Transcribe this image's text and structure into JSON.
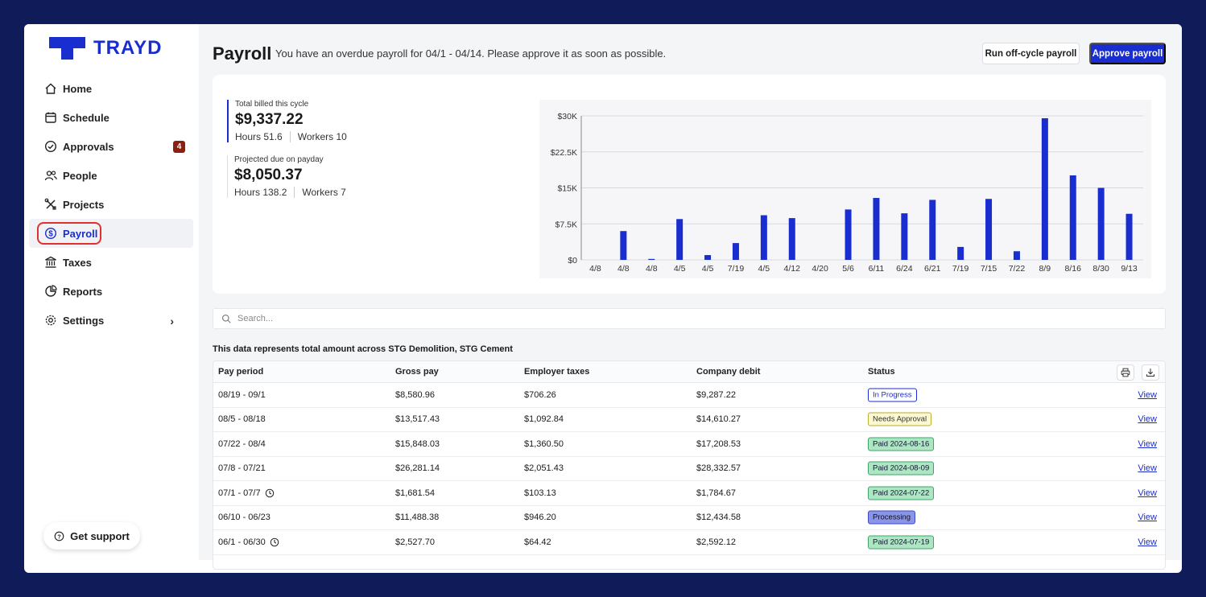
{
  "brand": {
    "name": "TRAYD",
    "color": "#1a2ecf"
  },
  "nav": {
    "items": [
      {
        "label": "Home",
        "icon": "home-icon"
      },
      {
        "label": "Schedule",
        "icon": "calendar-icon"
      },
      {
        "label": "Approvals",
        "icon": "check-circle-icon",
        "badge": "4"
      },
      {
        "label": "People",
        "icon": "people-icon"
      },
      {
        "label": "Projects",
        "icon": "tools-icon"
      },
      {
        "label": "Payroll",
        "icon": "dollar-circle-icon",
        "active": true
      },
      {
        "label": "Taxes",
        "icon": "bank-icon"
      },
      {
        "label": "Reports",
        "icon": "pie-chart-icon"
      },
      {
        "label": "Settings",
        "icon": "gear-icon"
      }
    ],
    "support_label": "Get support"
  },
  "header": {
    "title": "Payroll",
    "subtitle": "You have an overdue payroll for 04/1 - 04/14. Please approve it as soon as possible.",
    "off_cycle_label": "Run off-cycle payroll",
    "approve_label": "Approve payroll"
  },
  "stats": {
    "billed": {
      "label": "Total billed this cycle",
      "value": "$9,337.22",
      "hours": "Hours 51.6",
      "workers": "Workers 10"
    },
    "projected": {
      "label": "Projected due on payday",
      "value": "$8,050.37",
      "hours": "Hours 138.2",
      "workers": "Workers 7"
    }
  },
  "chart_data": {
    "type": "bar",
    "categories": [
      "4/8",
      "4/8",
      "4/8",
      "4/5",
      "4/5",
      "7/19",
      "4/5",
      "4/12",
      "4/20",
      "5/6",
      "6/11",
      "6/24",
      "6/21",
      "7/19",
      "7/15",
      "7/22",
      "8/9",
      "8/16",
      "8/30",
      "9/13"
    ],
    "values": [
      0,
      6000,
      200,
      8500,
      1000,
      3500,
      9300,
      8700,
      0,
      10500,
      12900,
      9700,
      12500,
      2700,
      12700,
      1800,
      29500,
      17600,
      15000,
      9600
    ],
    "yticks": [
      "$0",
      "$7.5K",
      "$15K",
      "$22.5K",
      "$30K"
    ],
    "ylim": [
      0,
      30000
    ],
    "grid": true,
    "color": "#1a2ecf"
  },
  "search": {
    "placeholder": "Search..."
  },
  "note": "This data represents total amount across STG Demolition, STG Cement",
  "table": {
    "columns": [
      "Pay period",
      "Gross pay",
      "Employer taxes",
      "Company debit",
      "Status"
    ],
    "view_label": "View",
    "rows": [
      {
        "period": "08/19 - 09/1",
        "gross": "$8,580.96",
        "taxes": "$706.26",
        "debit": "$9,287.22",
        "status": "In Progress",
        "kind": "progress",
        "clock": false
      },
      {
        "period": "08/5 - 08/18",
        "gross": "$13,517.43",
        "taxes": "$1,092.84",
        "debit": "$14,610.27",
        "status": "Needs Approval",
        "kind": "needs",
        "clock": false
      },
      {
        "period": "07/22 - 08/4",
        "gross": "$15,848.03",
        "taxes": "$1,360.50",
        "debit": "$17,208.53",
        "status": "Paid 2024-08-16",
        "kind": "paid",
        "clock": false
      },
      {
        "period": "07/8 - 07/21",
        "gross": "$26,281.14",
        "taxes": "$2,051.43",
        "debit": "$28,332.57",
        "status": "Paid 2024-08-09",
        "kind": "paid",
        "clock": false
      },
      {
        "period": "07/1 - 07/7",
        "gross": "$1,681.54",
        "taxes": "$103.13",
        "debit": "$1,784.67",
        "status": "Paid 2024-07-22",
        "kind": "paid",
        "clock": true
      },
      {
        "period": "06/10 - 06/23",
        "gross": "$11,488.38",
        "taxes": "$946.20",
        "debit": "$12,434.58",
        "status": "Processing",
        "kind": "processing",
        "clock": false
      },
      {
        "period": "06/1 - 06/30",
        "gross": "$2,527.70",
        "taxes": "$64.42",
        "debit": "$2,592.12",
        "status": "Paid 2024-07-19",
        "kind": "paid",
        "clock": true
      }
    ]
  }
}
